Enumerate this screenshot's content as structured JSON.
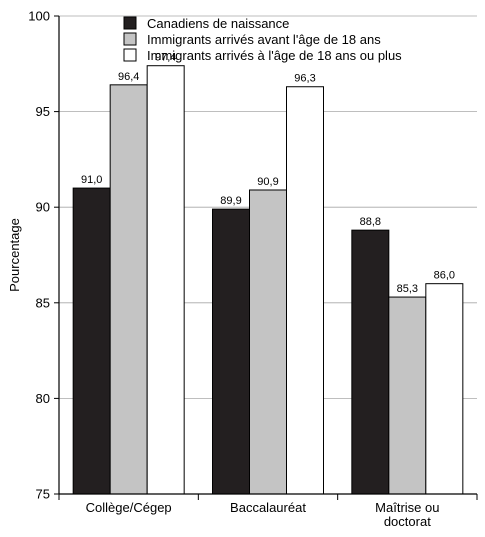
{
  "chart_data": {
    "type": "bar",
    "title": "",
    "xlabel": "",
    "ylabel": "Pourcentage",
    "ylim": [
      75,
      100
    ],
    "yticks": [
      75,
      80,
      85,
      90,
      95,
      100
    ],
    "grid": true,
    "legend_position": "top",
    "categories": [
      [
        "Collège/Cégep"
      ],
      [
        "Baccalauréat"
      ],
      [
        "Maîtrise ou",
        "doctorat"
      ]
    ],
    "series": [
      {
        "name": "Canadiens de naissance",
        "color": "#231f20",
        "values": [
          91.0,
          89.9,
          88.8
        ],
        "labels": [
          "91,0",
          "89,9",
          "88,8"
        ]
      },
      {
        "name": "Immigrants arrivés avant l'âge de 18 ans",
        "color": "#c4c4c4",
        "values": [
          96.4,
          90.9,
          85.3
        ],
        "labels": [
          "96,4",
          "90,9",
          "85,3"
        ]
      },
      {
        "name": "Immigrants arrivés à l'âge de 18 ans ou plus",
        "color": "#ffffff",
        "values": [
          97.4,
          96.3,
          86.0
        ],
        "labels": [
          "97,4",
          "96,3",
          "86,0"
        ]
      }
    ]
  }
}
